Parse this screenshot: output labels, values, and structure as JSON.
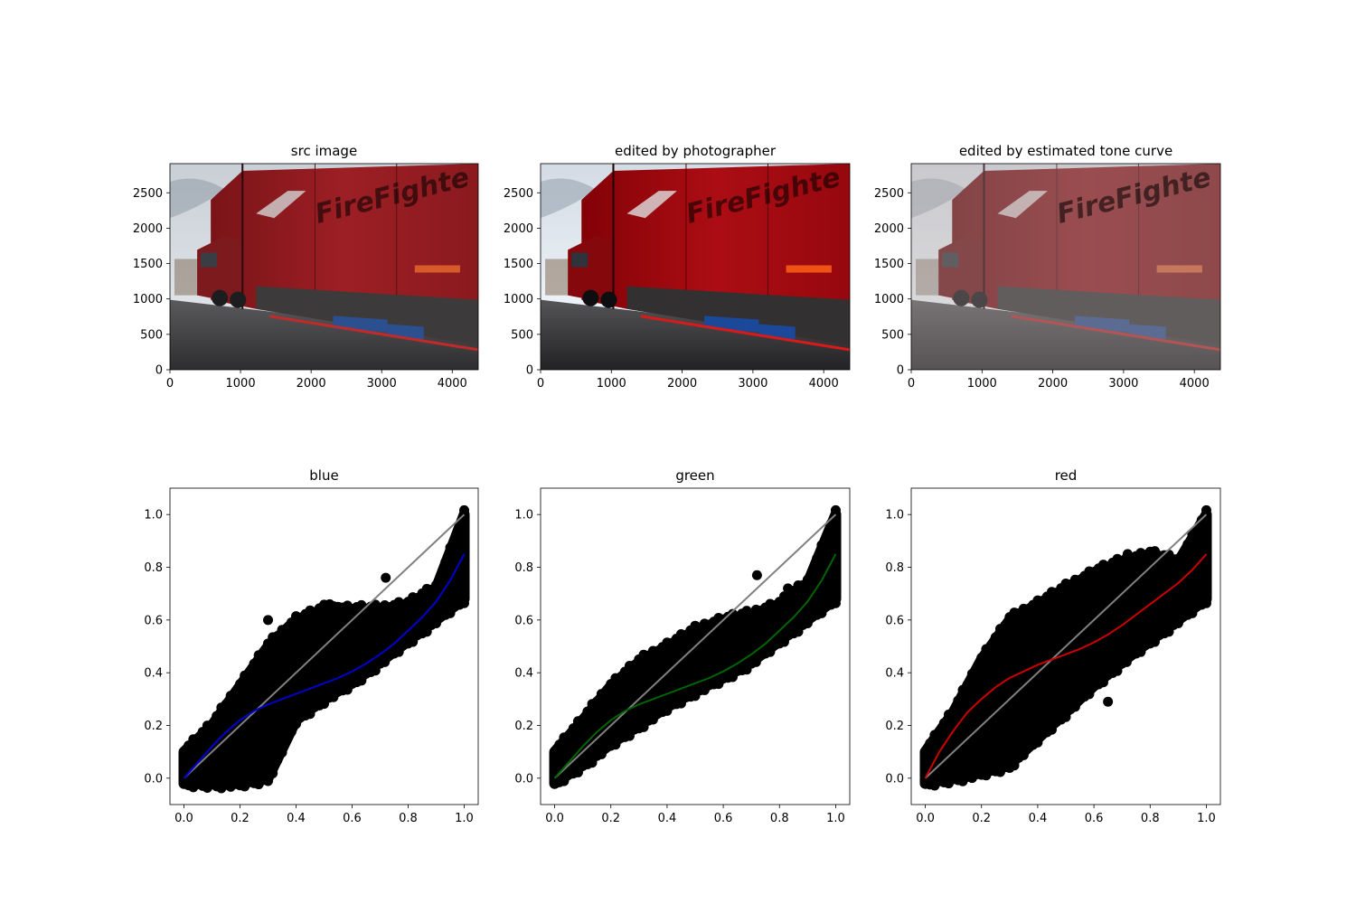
{
  "figure": {
    "panels": [
      {
        "title": "src image"
      },
      {
        "title": "edited by photographer"
      },
      {
        "title": "edited by estimated tone curve"
      },
      {
        "title": "blue"
      },
      {
        "title": "green"
      },
      {
        "title": "red"
      }
    ]
  },
  "chart_data": [
    {
      "type": "image",
      "title": "src image",
      "photo_style": "original",
      "xlim": [
        0,
        4368
      ],
      "ylim": [
        2912,
        0
      ],
      "xticks": [
        "0",
        "1000",
        "2000",
        "3000",
        "4000"
      ],
      "yticks": [
        "0",
        "500",
        "1000",
        "1500",
        "2000",
        "2500"
      ],
      "xtick_values": [
        0,
        1000,
        2000,
        3000,
        4000
      ],
      "ytick_values": [
        0,
        500,
        1000,
        1500,
        2000,
        2500
      ],
      "image_text": "FireFighte"
    },
    {
      "type": "image",
      "title": "edited by photographer",
      "photo_style": "photographer",
      "xlim": [
        0,
        4368
      ],
      "ylim": [
        2912,
        0
      ],
      "xticks": [
        "0",
        "1000",
        "2000",
        "3000",
        "4000"
      ],
      "yticks": [
        "0",
        "500",
        "1000",
        "1500",
        "2000",
        "2500"
      ],
      "xtick_values": [
        0,
        1000,
        2000,
        3000,
        4000
      ],
      "ytick_values": [
        0,
        500,
        1000,
        1500,
        2000,
        2500
      ],
      "image_text": "FireFighte"
    },
    {
      "type": "image",
      "title": "edited by estimated tone curve",
      "photo_style": "estimated",
      "xlim": [
        0,
        4368
      ],
      "ylim": [
        2912,
        0
      ],
      "xticks": [
        "0",
        "1000",
        "2000",
        "3000",
        "4000"
      ],
      "yticks": [
        "0",
        "500",
        "1000",
        "1500",
        "2000",
        "2500"
      ],
      "xtick_values": [
        0,
        1000,
        2000,
        3000,
        4000
      ],
      "ytick_values": [
        0,
        500,
        1000,
        1500,
        2000,
        2500
      ],
      "image_text": "FireFighte"
    },
    {
      "type": "scatter",
      "title": "blue",
      "curve_color": "#0000cc",
      "identity_color": "#808080",
      "point_color": "#000000",
      "xlim": [
        -0.05,
        1.05
      ],
      "ylim": [
        -0.1,
        1.1
      ],
      "xticks": [
        "0.0",
        "0.2",
        "0.4",
        "0.6",
        "0.8",
        "1.0"
      ],
      "yticks": [
        "0.0",
        "0.2",
        "0.4",
        "0.6",
        "0.8",
        "1.0"
      ],
      "xtick_values": [
        0,
        0.2,
        0.4,
        0.6,
        0.8,
        1.0
      ],
      "ytick_values": [
        0,
        0.2,
        0.4,
        0.6,
        0.8,
        1.0
      ],
      "identity_line": {
        "x": [
          0,
          1
        ],
        "y": [
          0,
          1
        ]
      },
      "curve": {
        "x": [
          0.0,
          0.05,
          0.1,
          0.15,
          0.2,
          0.25,
          0.3,
          0.35,
          0.4,
          0.45,
          0.5,
          0.55,
          0.6,
          0.65,
          0.7,
          0.75,
          0.8,
          0.85,
          0.9,
          0.95,
          1.0
        ],
        "y": [
          0.0,
          0.06,
          0.12,
          0.175,
          0.22,
          0.255,
          0.28,
          0.3,
          0.32,
          0.34,
          0.36,
          0.38,
          0.405,
          0.435,
          0.47,
          0.51,
          0.56,
          0.61,
          0.67,
          0.75,
          0.85
        ]
      },
      "cloud_band": {
        "x": [
          0.0,
          0.1,
          0.2,
          0.3,
          0.4,
          0.5,
          0.6,
          0.7,
          0.8,
          0.9,
          1.0
        ],
        "lower": [
          -0.02,
          -0.02,
          -0.02,
          0.0,
          0.22,
          0.3,
          0.36,
          0.44,
          0.52,
          0.6,
          0.68
        ],
        "upper": [
          0.1,
          0.2,
          0.35,
          0.5,
          0.6,
          0.64,
          0.64,
          0.64,
          0.66,
          0.72,
          1.0
        ]
      },
      "outliers": {
        "x": [
          0.72,
          0.78,
          0.97,
          0.55,
          0.52,
          0.3
        ],
        "y": [
          0.76,
          0.66,
          0.82,
          0.65,
          0.66,
          0.6
        ]
      }
    },
    {
      "type": "scatter",
      "title": "green",
      "curve_color": "#006400",
      "identity_color": "#808080",
      "point_color": "#000000",
      "xlim": [
        -0.05,
        1.05
      ],
      "ylim": [
        -0.1,
        1.1
      ],
      "xticks": [
        "0.0",
        "0.2",
        "0.4",
        "0.6",
        "0.8",
        "1.0"
      ],
      "yticks": [
        "0.0",
        "0.2",
        "0.4",
        "0.6",
        "0.8",
        "1.0"
      ],
      "xtick_values": [
        0,
        0.2,
        0.4,
        0.6,
        0.8,
        1.0
      ],
      "ytick_values": [
        0,
        0.2,
        0.4,
        0.6,
        0.8,
        1.0
      ],
      "identity_line": {
        "x": [
          0,
          1
        ],
        "y": [
          0,
          1
        ]
      },
      "curve": {
        "x": [
          0.0,
          0.05,
          0.1,
          0.15,
          0.2,
          0.25,
          0.3,
          0.35,
          0.4,
          0.45,
          0.5,
          0.55,
          0.6,
          0.65,
          0.7,
          0.75,
          0.8,
          0.85,
          0.9,
          0.95,
          1.0
        ],
        "y": [
          0.0,
          0.06,
          0.12,
          0.175,
          0.22,
          0.255,
          0.28,
          0.3,
          0.32,
          0.34,
          0.36,
          0.38,
          0.405,
          0.435,
          0.47,
          0.51,
          0.56,
          0.61,
          0.67,
          0.75,
          0.85
        ]
      },
      "cloud_band": {
        "x": [
          0.0,
          0.1,
          0.2,
          0.3,
          0.4,
          0.5,
          0.6,
          0.7,
          0.8,
          0.9,
          1.0
        ],
        "lower": [
          -0.02,
          0.05,
          0.13,
          0.2,
          0.27,
          0.33,
          0.38,
          0.44,
          0.52,
          0.6,
          0.68
        ],
        "upper": [
          0.1,
          0.22,
          0.35,
          0.44,
          0.5,
          0.56,
          0.6,
          0.62,
          0.66,
          0.74,
          1.0
        ]
      },
      "outliers": {
        "x": [
          0.72,
          0.83,
          0.88,
          0.98
        ],
        "y": [
          0.77,
          0.72,
          0.66,
          0.92
        ]
      }
    },
    {
      "type": "scatter",
      "title": "red",
      "curve_color": "#cc0000",
      "identity_color": "#808080",
      "point_color": "#000000",
      "xlim": [
        -0.05,
        1.05
      ],
      "ylim": [
        -0.1,
        1.1
      ],
      "xticks": [
        "0.0",
        "0.2",
        "0.4",
        "0.6",
        "0.8",
        "1.0"
      ],
      "yticks": [
        "0.0",
        "0.2",
        "0.4",
        "0.6",
        "0.8",
        "1.0"
      ],
      "xtick_values": [
        0,
        0.2,
        0.4,
        0.6,
        0.8,
        1.0
      ],
      "ytick_values": [
        0,
        0.2,
        0.4,
        0.6,
        0.8,
        1.0
      ],
      "identity_line": {
        "x": [
          0,
          1
        ],
        "y": [
          0,
          1
        ]
      },
      "curve": {
        "x": [
          0.0,
          0.05,
          0.1,
          0.15,
          0.2,
          0.25,
          0.3,
          0.35,
          0.4,
          0.45,
          0.5,
          0.55,
          0.6,
          0.65,
          0.7,
          0.75,
          0.8,
          0.85,
          0.9,
          0.95,
          1.0
        ],
        "y": [
          0.0,
          0.1,
          0.18,
          0.25,
          0.3,
          0.345,
          0.38,
          0.405,
          0.43,
          0.45,
          0.47,
          0.49,
          0.515,
          0.545,
          0.58,
          0.62,
          0.66,
          0.7,
          0.74,
          0.79,
          0.85
        ]
      },
      "cloud_band": {
        "x": [
          0.0,
          0.1,
          0.2,
          0.3,
          0.4,
          0.5,
          0.6,
          0.7,
          0.8,
          0.9,
          1.0
        ],
        "lower": [
          -0.02,
          0.0,
          0.02,
          0.05,
          0.15,
          0.25,
          0.35,
          0.44,
          0.52,
          0.6,
          0.68
        ],
        "upper": [
          0.1,
          0.25,
          0.45,
          0.6,
          0.66,
          0.72,
          0.78,
          0.82,
          0.85,
          0.82,
          1.0
        ]
      },
      "outliers": {
        "x": [
          0.3,
          0.33,
          0.37,
          0.43,
          0.65,
          0.72,
          0.77,
          0.8
        ],
        "y": [
          0.04,
          0.1,
          0.16,
          0.24,
          0.29,
          0.85,
          0.84,
          0.78
        ]
      }
    }
  ]
}
